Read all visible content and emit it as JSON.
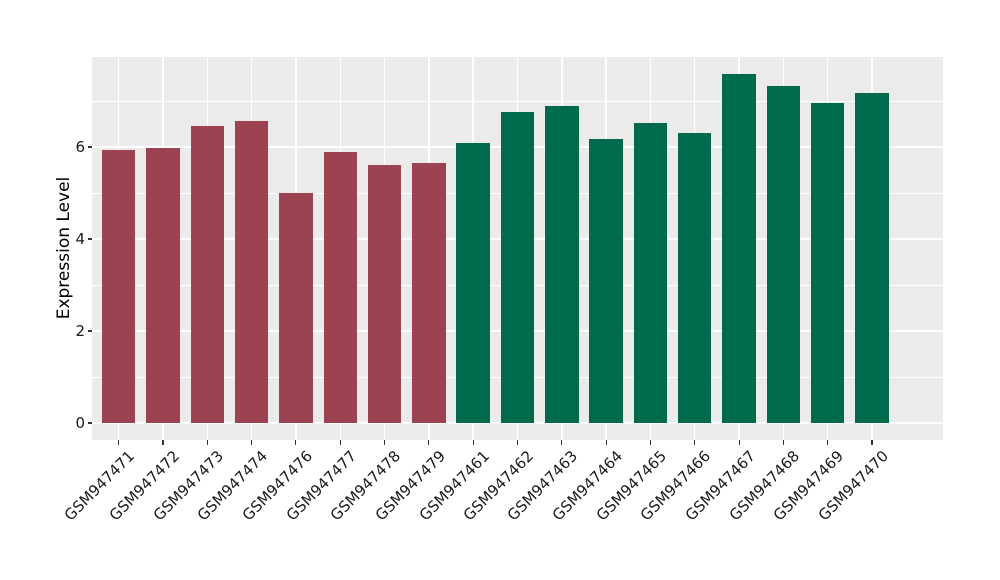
{
  "chart_data": {
    "type": "bar",
    "title": "",
    "xlabel": "",
    "ylabel": "Expression Level",
    "categories": [
      "GSM947471",
      "GSM947472",
      "GSM947473",
      "GSM947474",
      "GSM947476",
      "GSM947477",
      "GSM947478",
      "GSM947479",
      "GSM947461",
      "GSM947462",
      "GSM947463",
      "GSM947464",
      "GSM947465",
      "GSM947466",
      "GSM947467",
      "GSM947468",
      "GSM947469",
      "GSM947470"
    ],
    "values": [
      5.93,
      5.97,
      6.46,
      6.57,
      4.99,
      5.9,
      5.6,
      5.66,
      6.08,
      6.77,
      6.89,
      6.17,
      6.52,
      6.3,
      7.59,
      7.33,
      6.96,
      7.18
    ],
    "groups": [
      1,
      1,
      1,
      1,
      1,
      1,
      1,
      1,
      2,
      2,
      2,
      2,
      2,
      2,
      2,
      2,
      2,
      2
    ],
    "group_colors": {
      "1": "#9B4351",
      "2": "#006A4C"
    },
    "yticks": [
      0,
      2,
      4,
      6
    ],
    "minor_yticks": [
      1,
      3,
      5,
      7
    ],
    "ylim": [
      0,
      7.96
    ],
    "grid": true,
    "legend": "none",
    "colors": {
      "panel_background": "#EBEBEB",
      "grid": "#FFFFFF",
      "tick_marks": "#333333",
      "axis_text": "#1A1A1A",
      "axis_title": "#000000",
      "figure_background": "#FFFFFF"
    }
  }
}
